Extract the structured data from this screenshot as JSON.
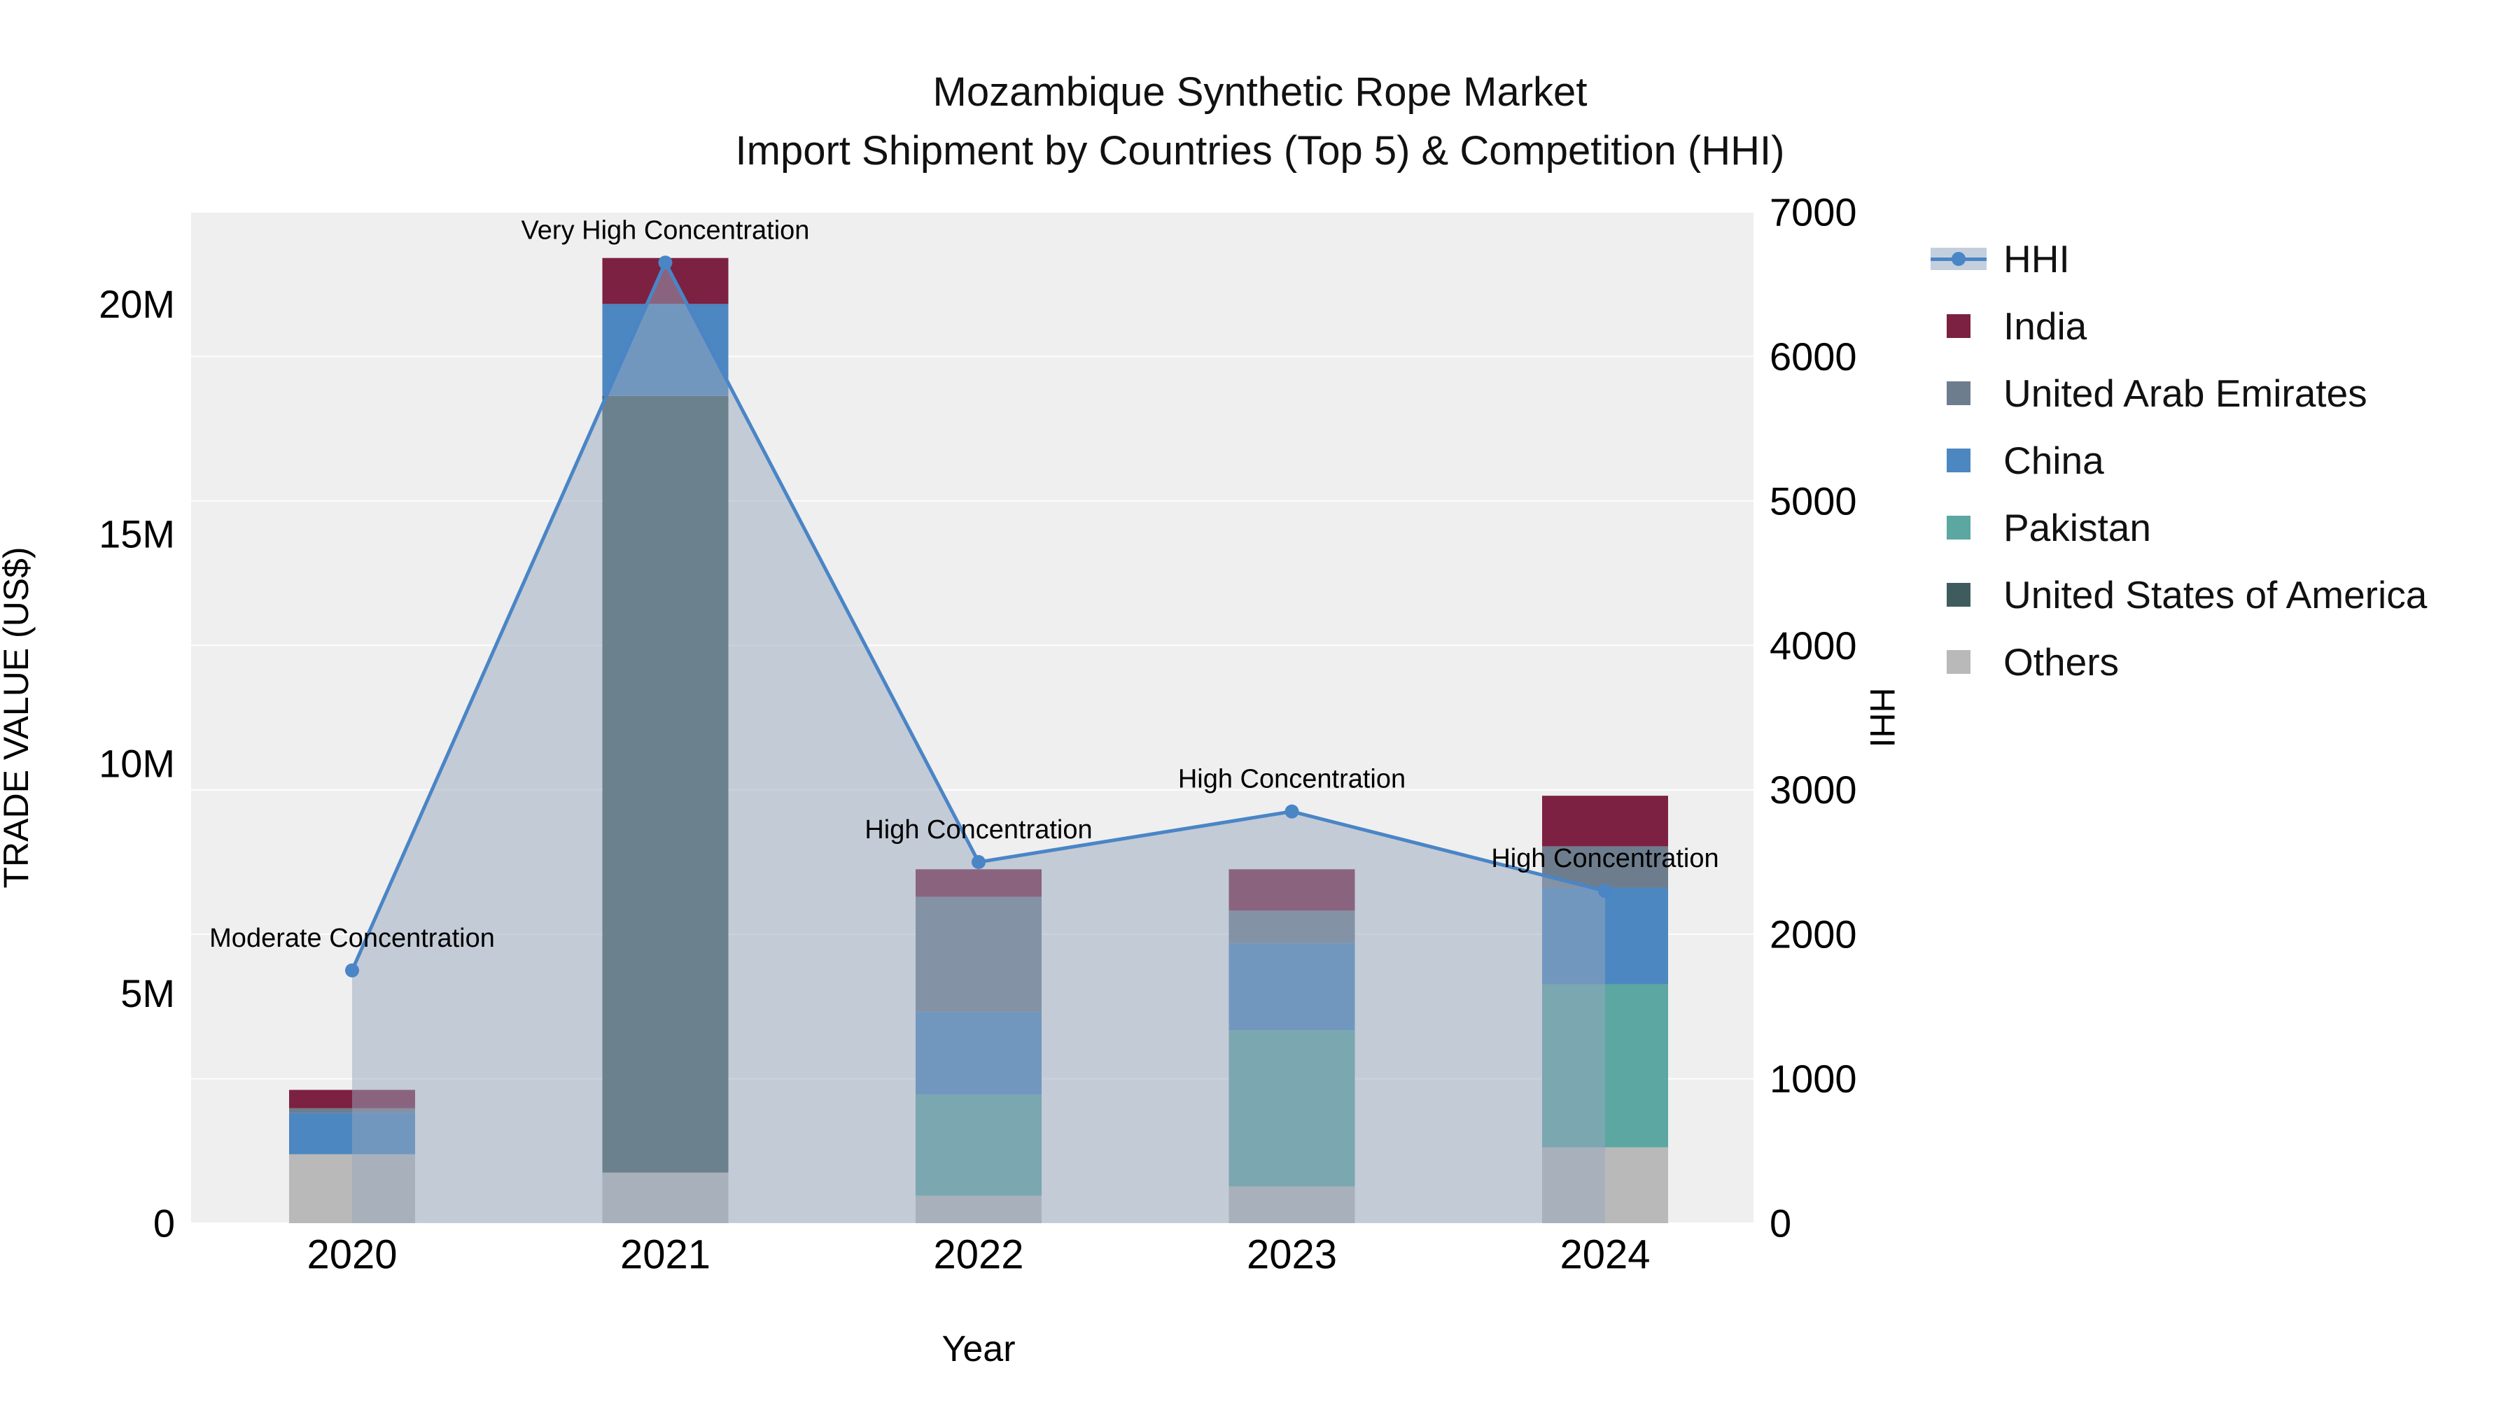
{
  "title": {
    "line1": "Mozambique Synthetic Rope Market",
    "line2": "Import Shipment by Countries (Top 5) & Competition (HHI)"
  },
  "axes": {
    "x_label": "Year",
    "y_left_label": "TRADE VALUE (US$)",
    "y_right_label": "HHI",
    "y_left_max": 22000000,
    "y_right_max": 7000,
    "y_left_ticks": [
      {
        "value": 0,
        "label": "0"
      },
      {
        "value": 5000000,
        "label": "5M"
      },
      {
        "value": 10000000,
        "label": "10M"
      },
      {
        "value": 15000000,
        "label": "15M"
      },
      {
        "value": 20000000,
        "label": "20M"
      }
    ],
    "y_right_ticks": [
      0,
      1000,
      2000,
      3000,
      4000,
      5000,
      6000,
      7000
    ]
  },
  "chart_data": {
    "type": "combo: stacked bar (trade value, left axis) + line with area (HHI, right axis)",
    "categories": [
      "2020",
      "2021",
      "2022",
      "2023",
      "2024"
    ],
    "bar_series": [
      {
        "name": "Others",
        "color": "#b9b9b9",
        "values": [
          1500000,
          1100000,
          600000,
          800000,
          1650000
        ]
      },
      {
        "name": "United States of America",
        "color": "#3e5c5e",
        "values": [
          0,
          16900000,
          0,
          0,
          0
        ]
      },
      {
        "name": "Pakistan",
        "color": "#5ca7a2",
        "values": [
          0,
          0,
          2200000,
          3400000,
          3550000
        ]
      },
      {
        "name": "China",
        "color": "#4c87c1",
        "values": [
          900000,
          2000000,
          1800000,
          1900000,
          2100000
        ]
      },
      {
        "name": "United Arab Emirates",
        "color": "#6e7d8d",
        "values": [
          100000,
          0,
          2500000,
          700000,
          900000
        ]
      },
      {
        "name": "India",
        "color": "#7c2141",
        "values": [
          400000,
          1000000,
          600000,
          900000,
          1100000
        ]
      }
    ],
    "line_series": {
      "name": "HHI",
      "color": "#4a85c6",
      "area_color": "rgba(151,167,190,0.5)",
      "values": [
        1750,
        6650,
        2500,
        2850,
        2300
      ]
    },
    "annotations": [
      {
        "x": "2020",
        "text": "Moderate Concentration"
      },
      {
        "x": "2021",
        "text": "Very High Concentration"
      },
      {
        "x": "2022",
        "text": "High Concentration"
      },
      {
        "x": "2023",
        "text": "High Concentration"
      },
      {
        "x": "2024",
        "text": "High Concentration"
      }
    ]
  },
  "legend": {
    "items": [
      {
        "label": "HHI",
        "type": "line",
        "color": "#4a85c6",
        "area_color": "#c4cfdd"
      },
      {
        "label": "India",
        "type": "swatch",
        "color": "#7c2141"
      },
      {
        "label": "United Arab Emirates",
        "type": "swatch",
        "color": "#6e7d8d"
      },
      {
        "label": "China",
        "type": "swatch",
        "color": "#4c87c1"
      },
      {
        "label": "Pakistan",
        "type": "swatch",
        "color": "#5ca7a2"
      },
      {
        "label": "United States of America",
        "type": "swatch",
        "color": "#3e5c5e"
      },
      {
        "label": "Others",
        "type": "swatch",
        "color": "#b9b9b9"
      }
    ]
  }
}
